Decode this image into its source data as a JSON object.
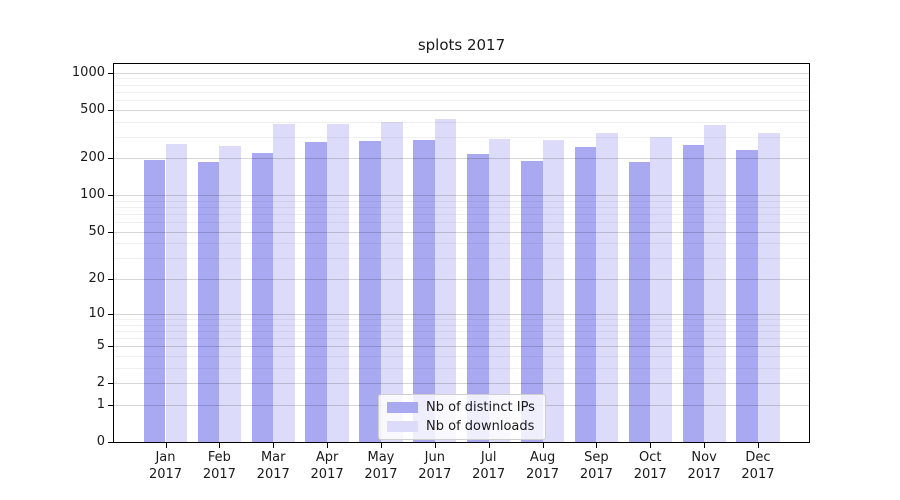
{
  "chart": {
    "title": "splots 2017",
    "background": "#ffffff",
    "text_color": "#1a1a1a",
    "spine_color": "#000000",
    "grid_major_color": "rgba(0,0,0,0.16)",
    "grid_minor_color": "rgba(0,0,0,0.06)",
    "legend": {
      "items": [
        {
          "label": "Nb of distinct IPs",
          "color": "#a9a9f2"
        },
        {
          "label": "Nb of downloads",
          "color": "#dcdcfa"
        }
      ]
    }
  },
  "chart_data": {
    "type": "bar",
    "title": "splots 2017",
    "categories": [
      "Jan 2017",
      "Feb 2017",
      "Mar 2017",
      "Apr 2017",
      "May 2017",
      "Jun 2017",
      "Jul 2017",
      "Aug 2017",
      "Sep 2017",
      "Oct 2017",
      "Nov 2017",
      "Dec 2017"
    ],
    "months": [
      "Jan",
      "Feb",
      "Mar",
      "Apr",
      "May",
      "Jun",
      "Jul",
      "Aug",
      "Sep",
      "Oct",
      "Nov",
      "Dec"
    ],
    "year": "2017",
    "series": [
      {
        "name": "Nb of distinct IPs",
        "color": "#a9a9f2",
        "values": [
          193,
          186,
          222,
          272,
          280,
          285,
          216,
          190,
          250,
          188,
          257,
          233
        ]
      },
      {
        "name": "Nb of downloads",
        "color": "#dcdcfa",
        "values": [
          264,
          255,
          382,
          382,
          400,
          418,
          291,
          283,
          323,
          300,
          377,
          320
        ]
      }
    ],
    "xlabel": "",
    "ylabel": "",
    "yscale": "symlog (position proportional to ln(1+v))",
    "ylim": [
      0,
      1220
    ],
    "yticks": [
      0,
      1,
      2,
      5,
      10,
      20,
      50,
      100,
      200,
      500,
      1000
    ],
    "ytick_labels": [
      "0",
      "1",
      "2",
      "5",
      "10",
      "20",
      "50",
      "100",
      "200",
      "500",
      "1000"
    ],
    "yticks_minor": [
      3,
      4,
      6,
      7,
      8,
      9,
      30,
      40,
      60,
      70,
      80,
      90,
      300,
      400,
      600,
      700,
      800,
      900
    ],
    "grid": "horizontal major+minor, drawn over bars",
    "legend_position": "lower center"
  }
}
